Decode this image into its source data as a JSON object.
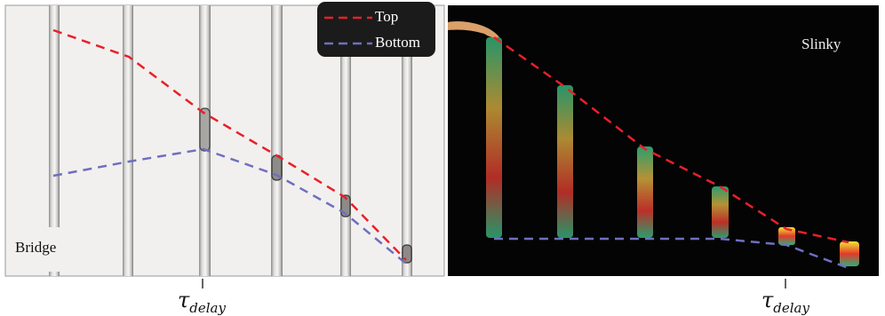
{
  "panels": {
    "left_label": "Bridge",
    "right_label": "Slinky"
  },
  "legend": {
    "top_label": "Top",
    "bottom_label": "Bottom"
  },
  "ticks": {
    "left": {
      "symbol": "τ",
      "subscript": "delay"
    },
    "right": {
      "symbol": "τ",
      "subscript": "delay"
    }
  },
  "colors": {
    "top_line": "#e8202a",
    "bottom_line": "#6f6fc0",
    "bridge_background": "#f2f0ee",
    "slinky_background": "#040404"
  }
}
